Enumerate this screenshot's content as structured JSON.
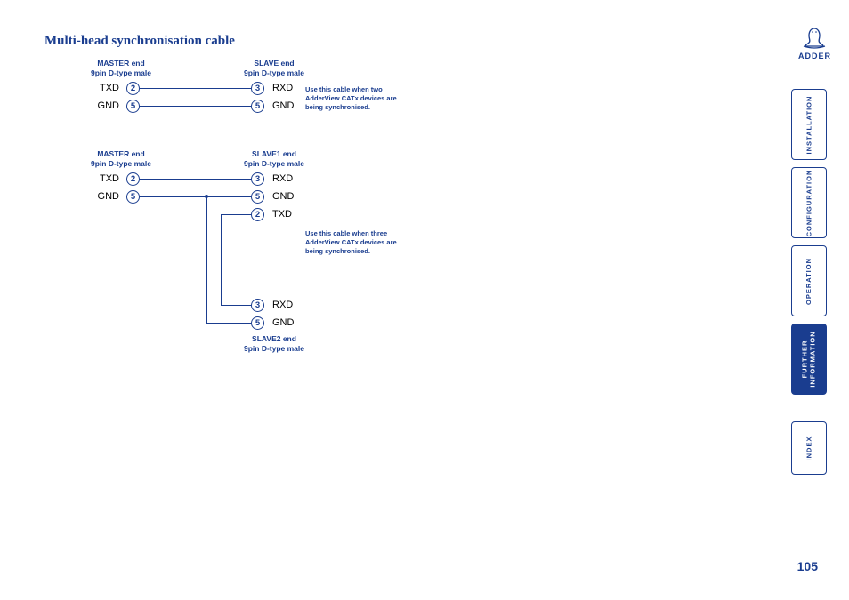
{
  "title": "Multi-head synchronisation cable",
  "page_number": "105",
  "logo_text": "ADDER",
  "nav": {
    "tabs": [
      {
        "label": "INSTALLATION",
        "active": false
      },
      {
        "label": "CONFIGURATION",
        "active": false
      },
      {
        "label": "OPERATION",
        "active": false
      },
      {
        "label": "FURTHER\nINFORMATION",
        "active": true
      },
      {
        "label": "INDEX",
        "active": false
      }
    ]
  },
  "diagram1": {
    "master_header": "MASTER end\n9pin D-type male",
    "slave_header": "SLAVE end\n9pin D-type male",
    "master_pins": [
      {
        "num": "2",
        "label": "TXD"
      },
      {
        "num": "5",
        "label": "GND"
      }
    ],
    "slave_pins": [
      {
        "num": "3",
        "label": "RXD"
      },
      {
        "num": "5",
        "label": "GND"
      }
    ],
    "note": "Use this cable when two AdderView CATx devices are being synchronised."
  },
  "diagram2": {
    "master_header": "MASTER end\n9pin D-type male",
    "slave1_header": "SLAVE1 end\n9pin D-type male",
    "slave2_header": "SLAVE2 end\n9pin D-type male",
    "master_pins": [
      {
        "num": "2",
        "label": "TXD"
      },
      {
        "num": "5",
        "label": "GND"
      }
    ],
    "slave1_pins": [
      {
        "num": "3",
        "label": "RXD"
      },
      {
        "num": "5",
        "label": "GND"
      },
      {
        "num": "2",
        "label": "TXD"
      }
    ],
    "slave2_pins": [
      {
        "num": "3",
        "label": "RXD"
      },
      {
        "num": "5",
        "label": "GND"
      }
    ],
    "note": "Use this cable when three AdderView CATx devices are being synchronised."
  },
  "colors": {
    "primary": "#1a3d8f",
    "background": "#ffffff",
    "text": "#000000"
  }
}
